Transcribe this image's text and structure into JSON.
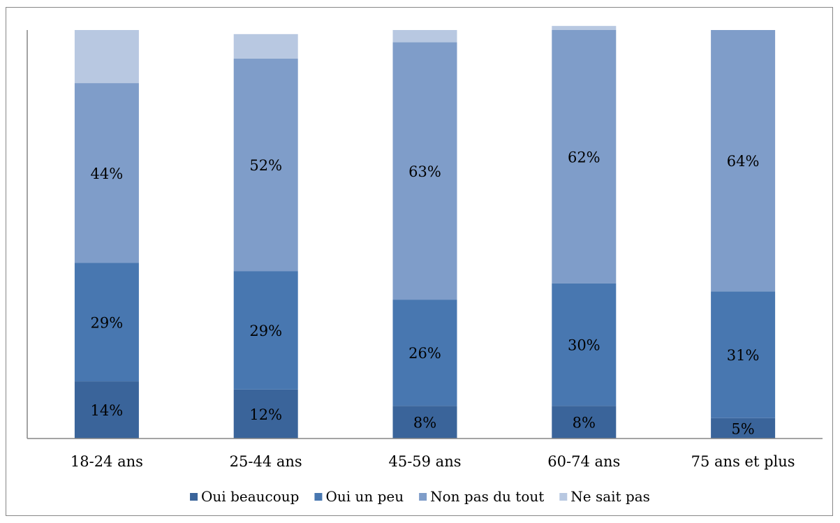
{
  "chart_data": {
    "type": "bar",
    "stacked": true,
    "normalized_percent": true,
    "categories": [
      "18-24 ans",
      "25-44 ans",
      "45-59 ans",
      "60-74 ans",
      "75 ans et plus"
    ],
    "series": [
      {
        "name": "Oui beaucoup",
        "values": [
          14,
          12,
          8,
          8,
          5
        ],
        "labels": [
          "14%",
          "12%",
          "8%",
          "8%",
          "5%"
        ],
        "color": "#3A649A"
      },
      {
        "name": "Oui un peu",
        "values": [
          29,
          29,
          26,
          30,
          31
        ],
        "labels": [
          "29%",
          "29%",
          "26%",
          "30%",
          "31%"
        ],
        "color": "#4877B0"
      },
      {
        "name": "Non pas du tout",
        "values": [
          44,
          52,
          63,
          62,
          64
        ],
        "labels": [
          "44%",
          "52%",
          "63%",
          "62%",
          "64%"
        ],
        "color": "#7F9DC9"
      },
      {
        "name": "Ne sait pas",
        "values": [
          13,
          6,
          3,
          1,
          0
        ],
        "labels": [
          "",
          "",
          "",
          "",
          ""
        ],
        "color": "#B8C8E1"
      }
    ],
    "ylim": [
      0,
      100
    ],
    "grid": false,
    "y_axis_labels": false,
    "legend_position": "bottom"
  }
}
